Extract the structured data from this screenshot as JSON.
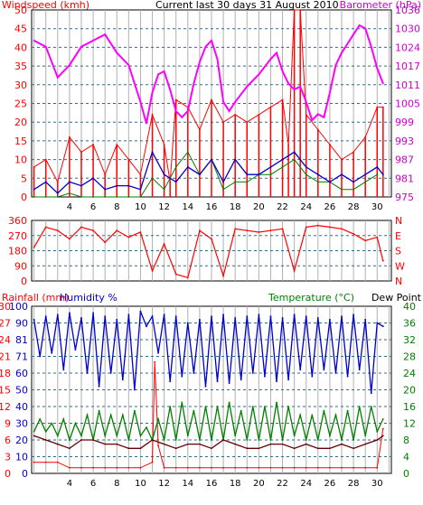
{
  "chart_data": [
    {
      "type": "line",
      "title": "Current last 30 days 31 August 2010",
      "left_axis_label": "Windspeed (kmh)",
      "right_axis_label": "Barometer (hPa)",
      "left_ylim": [
        0,
        50
      ],
      "left_ticks": [
        0,
        5,
        10,
        15,
        20,
        25,
        30,
        35,
        40,
        45,
        50
      ],
      "right_ylim": [
        975,
        1036
      ],
      "right_ticks": [
        975,
        981,
        987,
        993,
        999,
        1005,
        1011,
        1017,
        1024,
        1030,
        1036
      ],
      "x_ticks": [
        "4",
        "6",
        "8",
        "10",
        "12",
        "14",
        "16",
        "18",
        "20",
        "22",
        "24",
        "26",
        "28",
        "30"
      ],
      "colors": {
        "gust": "#ff0000",
        "average": "#0000cc",
        "barometer": "#ff00ff",
        "third": "#008000"
      },
      "barometer": {
        "x": [
          1,
          2,
          3,
          4,
          5,
          6,
          7,
          8,
          9,
          10,
          10.5,
          11,
          11.5,
          12,
          12.5,
          13,
          13.5,
          14,
          14.5,
          15,
          15.5,
          16,
          16.5,
          17,
          17.5,
          18,
          19,
          20,
          21,
          21.5,
          22,
          22.5,
          23,
          23.5,
          24,
          24.5,
          25,
          25.5,
          26,
          26.5,
          27,
          28,
          28.5,
          29,
          29.5,
          30,
          30.5
        ],
        "values": [
          1026,
          1024,
          1014,
          1018,
          1024,
          1026,
          1028,
          1022,
          1018,
          1006,
          999,
          1009,
          1015,
          1016,
          1010,
          1003,
          1001,
          1003,
          1012,
          1019,
          1024,
          1026,
          1020,
          1006,
          1003,
          1006,
          1011,
          1015,
          1020,
          1022,
          1016,
          1012,
          1010,
          1011,
          1006,
          1000,
          1002,
          1001,
          1009,
          1018,
          1022,
          1028,
          1031,
          1030,
          1024,
          1017,
          1012
        ]
      },
      "gust": {
        "x": [
          1,
          2,
          3,
          4,
          5,
          6,
          7,
          8,
          9,
          10,
          11,
          12,
          12.5,
          13,
          14,
          15,
          16,
          17,
          18,
          19,
          20,
          21,
          22,
          22.5,
          23,
          23.5,
          24,
          25,
          26,
          27,
          28,
          29,
          30,
          30.5
        ],
        "values": [
          8,
          10,
          4,
          16,
          12,
          14,
          6,
          14,
          10,
          6,
          22,
          14,
          4,
          26,
          24,
          18,
          26,
          20,
          22,
          20,
          22,
          24,
          26,
          14,
          50,
          50,
          22,
          18,
          14,
          10,
          12,
          16,
          24,
          24
        ]
      },
      "average": {
        "x": [
          1,
          2,
          3,
          4,
          5,
          6,
          7,
          8,
          9,
          10,
          11,
          12,
          13,
          14,
          15,
          16,
          17,
          18,
          19,
          20,
          21,
          22,
          23,
          24,
          25,
          26,
          27,
          28,
          29,
          30,
          30.5
        ],
        "values": [
          2,
          4,
          1,
          4,
          3,
          5,
          2,
          3,
          3,
          2,
          12,
          6,
          4,
          8,
          6,
          10,
          4,
          10,
          6,
          6,
          8,
          10,
          12,
          8,
          6,
          4,
          6,
          4,
          6,
          8,
          6
        ]
      },
      "third": {
        "x": [
          1,
          2,
          3,
          4,
          5,
          6,
          7,
          8,
          9,
          10,
          11,
          12,
          13,
          14,
          15,
          16,
          17,
          18,
          19,
          20,
          21,
          22,
          23,
          24,
          25,
          26,
          27,
          28,
          29,
          30
        ],
        "values": [
          0,
          0,
          0,
          1,
          0,
          0,
          0,
          0,
          0,
          0,
          5,
          2,
          8,
          12,
          6,
          10,
          2,
          4,
          4,
          6,
          6,
          8,
          10,
          6,
          4,
          4,
          2,
          2,
          4,
          6
        ]
      }
    },
    {
      "type": "line",
      "right_axis_label": "N W S E N",
      "left_ylim": [
        0,
        360
      ],
      "left_ticks": [
        0,
        90,
        180,
        270,
        360
      ],
      "right_ticks": [
        "N",
        "W",
        "S",
        "E",
        "N"
      ],
      "direction": {
        "x": [
          1,
          2,
          3,
          4,
          5,
          6,
          7,
          8,
          9,
          10,
          11,
          12,
          13,
          14,
          15,
          16,
          17,
          18,
          19,
          20,
          21,
          22,
          23,
          24,
          25,
          26,
          27,
          28,
          29,
          30,
          30.5
        ],
        "values": [
          200,
          320,
          300,
          250,
          320,
          300,
          230,
          300,
          260,
          290,
          60,
          220,
          40,
          20,
          300,
          250,
          30,
          310,
          300,
          290,
          300,
          310,
          60,
          320,
          330,
          320,
          310,
          280,
          240,
          260,
          120
        ]
      }
    },
    {
      "type": "line",
      "left_axis_label": "Rainfall (mm)",
      "humidity_label": "Humidity %",
      "right_axis_label": "Temperature (°C)",
      "dewpoint_label": "Dew Point",
      "rain_ticks": [
        0,
        3,
        6,
        9,
        12,
        15,
        18,
        21,
        24,
        27,
        30
      ],
      "humidity_ticks": [
        0,
        10,
        20,
        30,
        40,
        50,
        60,
        71,
        81,
        90,
        100
      ],
      "temp_ticks": [
        0,
        4,
        8,
        12,
        16,
        20,
        24,
        28,
        32,
        36,
        40
      ],
      "left_ylim": [
        0,
        30
      ],
      "right_ylim": [
        0,
        40
      ],
      "humidity": {
        "x": [
          1,
          1.5,
          2,
          2.5,
          3,
          3.5,
          4,
          4.5,
          5,
          5.5,
          6,
          6.5,
          7,
          7.5,
          8,
          8.5,
          9,
          9.5,
          10,
          10.5,
          11,
          11.5,
          12,
          12.5,
          13,
          13.5,
          14,
          14.5,
          15,
          15.5,
          16,
          16.5,
          17,
          17.5,
          18,
          18.5,
          19,
          19.5,
          20,
          20.5,
          21,
          21.5,
          22,
          22.5,
          23,
          23.5,
          24,
          24.5,
          25,
          25.5,
          26,
          26.5,
          27,
          27.5,
          28,
          28.5,
          29,
          29.5,
          30,
          30.5
        ],
        "values": [
          92,
          70,
          94,
          72,
          95,
          62,
          96,
          74,
          93,
          60,
          96,
          52,
          94,
          60,
          92,
          56,
          95,
          50,
          97,
          88,
          94,
          72,
          95,
          55,
          94,
          58,
          90,
          60,
          92,
          52,
          94,
          55,
          95,
          54,
          93,
          56,
          94,
          60,
          95,
          58,
          94,
          55,
          93,
          56,
          95,
          62,
          94,
          58,
          93,
          62,
          92,
          60,
          94,
          58,
          95,
          62,
          92,
          48,
          90,
          88
        ]
      },
      "temperature": {
        "x": [
          1,
          1.5,
          2,
          2.5,
          3,
          3.5,
          4,
          4.5,
          5,
          5.5,
          6,
          6.5,
          7,
          7.5,
          8,
          8.5,
          9,
          9.5,
          10,
          10.5,
          11,
          11.5,
          12,
          12.5,
          13,
          13.5,
          14,
          14.5,
          15,
          15.5,
          16,
          16.5,
          17,
          17.5,
          18,
          18.5,
          19,
          19.5,
          20,
          20.5,
          21,
          21.5,
          22,
          22.5,
          23,
          23.5,
          24,
          24.5,
          25,
          25.5,
          26,
          26.5,
          27,
          27.5,
          28,
          28.5,
          29,
          29.5,
          30,
          30.5
        ],
        "values": [
          10,
          13,
          10,
          12,
          9,
          13,
          8,
          12,
          9,
          14,
          8,
          15,
          9,
          14,
          9,
          14,
          8,
          15,
          9,
          11,
          8,
          13,
          8,
          16,
          8,
          17,
          9,
          15,
          8,
          16,
          8,
          16,
          8,
          17,
          9,
          15,
          8,
          16,
          8,
          16,
          8,
          17,
          8,
          16,
          9,
          14,
          8,
          14,
          8,
          15,
          9,
          14,
          8,
          15,
          8,
          16,
          9,
          16,
          10,
          13
        ]
      },
      "dewpoint": {
        "x": [
          1,
          2,
          3,
          4,
          5,
          6,
          7,
          8,
          9,
          10,
          11,
          12,
          13,
          14,
          15,
          16,
          17,
          18,
          19,
          20,
          21,
          22,
          23,
          24,
          25,
          26,
          27,
          28,
          29,
          30,
          30.5
        ],
        "values": [
          9,
          8,
          7,
          6,
          8,
          8,
          7,
          7,
          6,
          6,
          8,
          7,
          6,
          7,
          7,
          6,
          8,
          7,
          6,
          6,
          7,
          7,
          6,
          7,
          6,
          6,
          7,
          6,
          7,
          8,
          9
        ]
      },
      "rainfall": {
        "x": [
          1,
          2,
          3,
          4,
          5,
          6,
          7,
          8,
          9,
          10,
          11,
          11.2,
          11.5,
          12,
          13,
          14,
          15,
          16,
          17,
          18,
          19,
          20,
          21,
          22,
          23,
          24,
          25,
          26,
          27,
          28,
          29,
          30,
          30.5
        ],
        "values": [
          2,
          2,
          2,
          1,
          1,
          1,
          1,
          1,
          1,
          1,
          2,
          20,
          5,
          1,
          1,
          1,
          1,
          1,
          1,
          1,
          1,
          1,
          1,
          1,
          1,
          1,
          1,
          1,
          1,
          1,
          1,
          1,
          8
        ]
      }
    }
  ]
}
